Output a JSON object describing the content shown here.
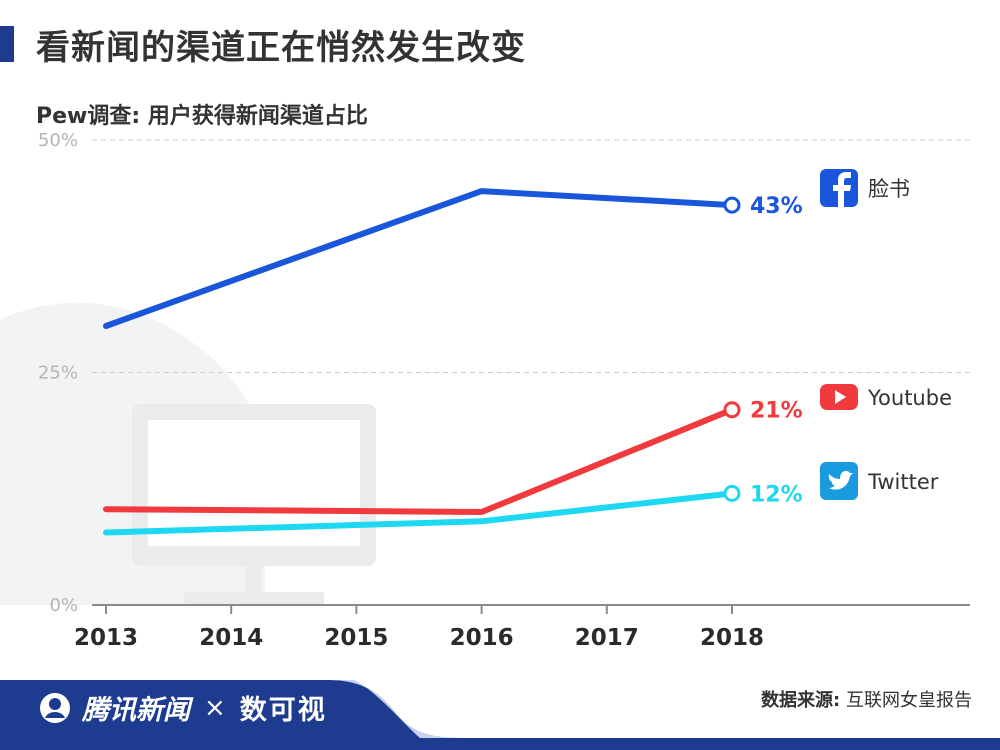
{
  "header": {
    "title": "看新闻的渠道正在悄然发生改变"
  },
  "chart_data": {
    "type": "line",
    "title": "Pew调查: 用户获得新闻渠道占比",
    "x": [
      "2013",
      "2014",
      "2015",
      "2016",
      "2017",
      "2018"
    ],
    "x_values": [
      2013,
      2014,
      2015,
      2016,
      2017,
      2018
    ],
    "ylim": [
      0,
      50
    ],
    "yticks": [
      "0%",
      "25%",
      "50%"
    ],
    "ytick_values": [
      0,
      25,
      50
    ],
    "grid": "horizontal dashed",
    "series": [
      {
        "name": "脸书",
        "color": "#1a56db",
        "icon": "facebook-icon",
        "points": [
          [
            2013,
            30
          ],
          [
            2016,
            44.5
          ],
          [
            2018,
            43
          ]
        ],
        "end_label": "43%"
      },
      {
        "name": "Youtube",
        "color": "#f03a3e",
        "icon": "youtube-icon",
        "points": [
          [
            2013,
            10.3
          ],
          [
            2016,
            10
          ],
          [
            2018,
            21
          ]
        ],
        "end_label": "21%"
      },
      {
        "name": "Twitter",
        "color": "#1ed8f2",
        "icon": "twitter-icon",
        "points": [
          [
            2013,
            7.8
          ],
          [
            2016,
            9
          ],
          [
            2018,
            12
          ]
        ],
        "end_label": "12%"
      }
    ]
  },
  "footer": {
    "brand": "腾讯新闻",
    "separator": "×",
    "partner": "数可视",
    "source_label": "数据来源:",
    "source_value": "互联网女皇报告"
  },
  "colors": {
    "title_bar": "#1d3c8f",
    "footer_bg": "#1d3c8f",
    "grid": "#cccccc"
  }
}
